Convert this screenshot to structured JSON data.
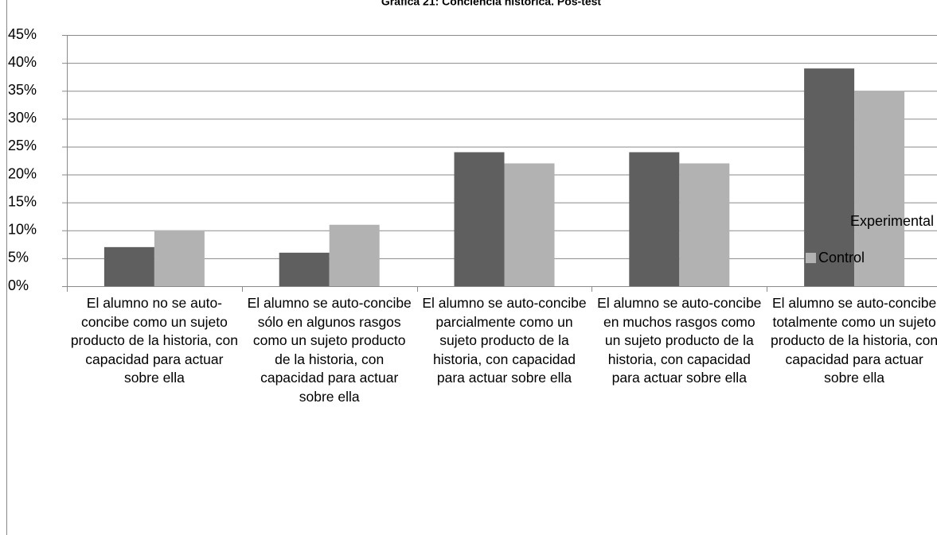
{
  "chart_data": {
    "type": "bar",
    "title": "Gráfica 21: Conciencia histórica. Pos-test",
    "categories": [
      "El alumno no se auto-concibe como un sujeto producto de la historia, con capacidad para actuar sobre ella",
      "El alumno se auto-concibe sólo en algunos rasgos como un sujeto producto de la historia, con capacidad para actuar sobre ella",
      "El alumno se auto-concibe parcialmente como un sujeto producto de la historia, con capacidad para actuar sobre ella",
      "El alumno se auto-concibe en muchos rasgos como un sujeto producto de la historia, con capacidad para actuar sobre ella",
      "El alumno se auto-concibe totalmente como un sujeto producto de la historia, con capacidad para actuar sobre ella"
    ],
    "series": [
      {
        "name": "Experimental",
        "color": "#5f5f5f",
        "values": [
          7,
          6,
          24,
          24,
          39
        ]
      },
      {
        "name": "Control",
        "color": "#b2b2b2",
        "values": [
          10,
          11,
          22,
          22,
          35
        ]
      }
    ],
    "ylim": [
      0,
      45
    ],
    "yticks": [
      {
        "value": 0,
        "label": "0%"
      },
      {
        "value": 5,
        "label": "5%"
      },
      {
        "value": 10,
        "label": "10%"
      },
      {
        "value": 15,
        "label": "15%"
      },
      {
        "value": 20,
        "label": "20%"
      },
      {
        "value": 25,
        "label": "25%"
      },
      {
        "value": 30,
        "label": "30%"
      },
      {
        "value": 35,
        "label": "35%"
      },
      {
        "value": 40,
        "label": "40%"
      },
      {
        "value": 45,
        "label": "45%"
      }
    ],
    "grid": true,
    "legend": "right"
  }
}
